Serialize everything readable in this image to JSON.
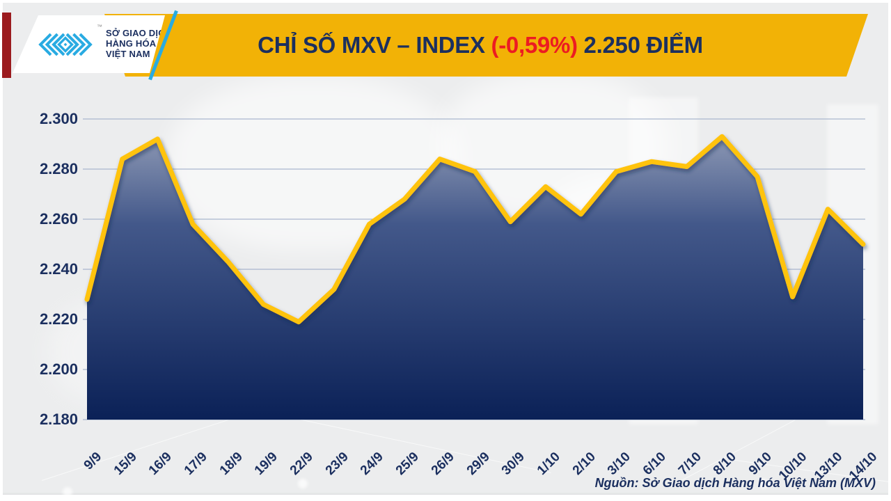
{
  "header": {
    "logo": {
      "org_lines": [
        "SỞ GIAO DỊCH",
        "HÀNG HÓA",
        "VIỆT NAM"
      ],
      "trademark": "™"
    },
    "title": {
      "part1": "CHỈ SỐ MXV – INDEX ",
      "highlight": "(-0,59%)",
      "part2": " 2.250 ĐIỂM"
    }
  },
  "footer": {
    "source": "Nguồn: Sở Giao dịch Hàng hóa Việt Nam (MXV)"
  },
  "colors": {
    "banner_yellow": "#F2B206",
    "line_yellow": "#FFC30B",
    "navy": "#1B2F5F",
    "red_accent": "#EC1B22",
    "cyan": "#29ABE2",
    "dark_red": "#9B1B1E",
    "grid": "#A9B6CE",
    "area_top": "#9AA4BC",
    "area_mid": "#43588A",
    "area_bottom": "#0B2157"
  },
  "chart_data": {
    "type": "area",
    "title": "CHỈ SỐ MXV – INDEX (-0,59%) 2.250 ĐIỂM",
    "change_pct": "-0,59%",
    "last_value_label": "2.250",
    "x": [
      "9/9",
      "15/9",
      "16/9",
      "17/9",
      "18/9",
      "19/9",
      "22/9",
      "23/9",
      "24/9",
      "25/9",
      "26/9",
      "29/9",
      "30/9",
      "1/10",
      "2/10",
      "3/10",
      "6/10",
      "7/10",
      "8/10",
      "9/10",
      "10/10",
      "13/10",
      "14/10"
    ],
    "values": [
      2228,
      2284,
      2292,
      2258,
      2243,
      2226,
      2219,
      2232,
      2258,
      2268,
      2284,
      2279,
      2259,
      2273,
      2262,
      2279,
      2283,
      2281,
      2293,
      2277,
      2229,
      2264,
      2250
    ],
    "ylim": [
      2180,
      2300
    ],
    "yticks": [
      2300,
      2280,
      2260,
      2240,
      2220,
      2200,
      2180
    ],
    "ytick_labels": [
      "2.300",
      "2.280",
      "2.260",
      "2.240",
      "2.220",
      "2.200",
      "2.180"
    ],
    "xlabel": "",
    "ylabel": "",
    "grid": "horizontal",
    "legend": "none"
  }
}
